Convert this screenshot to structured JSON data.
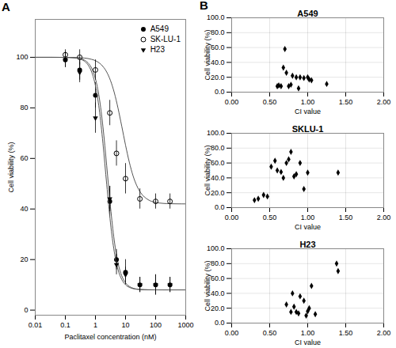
{
  "chart_data": [
    {
      "type": "scatter",
      "xlabel": "Paclitaxel concentration (nM)",
      "ylabel": "Cell viability (%)",
      "log": "x",
      "xlim": [
        0.01,
        1000
      ],
      "ylim": [
        -2,
        115
      ],
      "xticks": [
        0.01,
        0.1,
        1,
        10,
        100,
        1000
      ],
      "yticks": [
        0,
        20,
        40,
        60,
        80,
        100
      ],
      "grid": false,
      "legend": "upper right",
      "annotations": [
        "A"
      ],
      "series": [
        {
          "type": "line",
          "color": "#555555",
          "x": [
            0.01,
            0.01778,
            0.03162,
            0.05623,
            0.1,
            0.1778,
            0.3162,
            0.4217,
            0.5623,
            0.7499,
            1,
            1.334,
            1.778,
            2.371,
            3.162,
            4.217,
            5.623,
            7.499,
            10,
            13.34,
            17.78,
            23.71,
            31.62,
            56.23,
            100,
            177.8,
            316.2,
            562.3,
            1000
          ],
          "values": [
            100.0,
            100.0,
            100.0,
            99.99,
            99.97,
            99.88,
            99.48,
            98.94,
            97.84,
            95.68,
            91.55,
            84.17,
            72.48,
            57.04,
            40.86,
            27.59,
            18.71,
            13.55,
            10.79,
            9.38,
            8.68,
            8.33,
            8.16,
            8.04,
            8.01,
            8.0,
            8.0,
            8.0,
            8.0
          ]
        },
        {
          "type": "scatter",
          "name": "A549",
          "marker": "circle",
          "color": "black",
          "x": [
            0.1,
            0.3,
            1,
            3,
            5,
            10,
            30,
            100,
            300
          ],
          "values": [
            99,
            95,
            85,
            43,
            20,
            15,
            10,
            10,
            10
          ],
          "yerr": [
            3,
            4,
            5,
            6,
            4,
            5,
            3,
            4,
            3
          ]
        },
        {
          "type": "line",
          "color": "#555555",
          "x": [
            0.01,
            0.01778,
            0.03162,
            0.05623,
            0.1,
            0.1778,
            0.3162,
            0.4217,
            0.5623,
            0.7499,
            1,
            1.334,
            1.778,
            2.371,
            3.162,
            4.217,
            5.623,
            7.499,
            10,
            13.34,
            17.78,
            23.71,
            31.62,
            56.23,
            100,
            177.8,
            316.2,
            562.3,
            1000
          ],
          "values": [
            100.0,
            100.0,
            100.0,
            99.99,
            99.98,
            99.94,
            99.83,
            99.71,
            99.52,
            99.19,
            98.66,
            97.78,
            96.37,
            94.16,
            90.82,
            86.08,
            79.9,
            72.69,
            65.25,
            58.53,
            53.13,
            49.19,
            46.51,
            43.68,
            42.61,
            42.22,
            42.08,
            42.03,
            42.01
          ]
        },
        {
          "type": "scatter",
          "name": "SK-LU-1",
          "marker": "open_circle",
          "color": "black",
          "x": [
            0.1,
            0.3,
            1,
            3,
            5,
            10,
            30,
            100,
            300
          ],
          "values": [
            101,
            100,
            95,
            78,
            62,
            52,
            44,
            43,
            43
          ],
          "yerr": [
            2,
            3,
            4,
            5,
            5,
            6,
            4,
            3,
            3
          ]
        },
        {
          "type": "line",
          "color": "#555555",
          "x": [
            0.01,
            0.01778,
            0.03162,
            0.05623,
            0.1,
            0.1778,
            0.3162,
            0.4217,
            0.5623,
            0.7499,
            1,
            1.334,
            1.778,
            2.371,
            3.162,
            4.217,
            5.623,
            7.499,
            10,
            13.34,
            17.78,
            23.71,
            31.62,
            56.23,
            100,
            177.8,
            316.2,
            562.3,
            1000
          ],
          "values": [
            100.0,
            100.0,
            100.0,
            99.99,
            99.96,
            99.83,
            99.28,
            98.54,
            97.06,
            94.16,
            88.75,
            79.54,
            65.96,
            49.7,
            34.46,
            23.12,
            16.04,
            12.1,
            10.04,
            9.01,
            8.49,
            8.24,
            8.12,
            8.03,
            8.01,
            8.0,
            8.0,
            8.0,
            8.0
          ]
        },
        {
          "type": "scatter",
          "name": "H23",
          "marker": "triangle_down",
          "color": "black",
          "x": [
            0.1,
            0.3,
            1,
            3,
            5,
            10,
            30,
            100,
            300
          ],
          "values": [
            99,
            94,
            76,
            44,
            18,
            14,
            10,
            10,
            10
          ],
          "yerr": [
            3,
            4,
            6,
            5,
            4,
            3,
            3,
            4,
            3
          ]
        }
      ]
    },
    {
      "type": "scatter",
      "title": "A549",
      "xlabel": "CI value",
      "ylabel": "Cell viability (%)",
      "xlim": [
        0.0,
        2.0
      ],
      "ylim": [
        0.0,
        100.0
      ],
      "xticks": [
        {
          "value": 0.0,
          "label": "0.00"
        },
        {
          "value": 0.5,
          "label": "0.50"
        },
        {
          "value": 1.0,
          "label": "1.00"
        },
        {
          "value": 1.5,
          "label": "1.50"
        },
        {
          "value": 2.0,
          "label": "2.00"
        }
      ],
      "yticks": [
        {
          "value": 0.0,
          "label": "0.0"
        },
        {
          "value": 20.0,
          "label": "20.0"
        },
        {
          "value": 40.0,
          "label": "40.0"
        },
        {
          "value": 60.0,
          "label": "60.0"
        },
        {
          "value": 80.0,
          "label": "80.0"
        },
        {
          "value": 100.0,
          "label": "100.0"
        }
      ],
      "grid": true,
      "annotations": [
        "B"
      ],
      "series": [
        {
          "marker": "diamond",
          "color": "black",
          "x": [
            0.6,
            0.62,
            0.65,
            0.68,
            0.7,
            0.72,
            0.75,
            0.78,
            0.8,
            0.85,
            0.88,
            0.9,
            0.95,
            1.0,
            1.02,
            1.05,
            1.25
          ],
          "values": [
            8,
            9,
            8,
            33,
            58,
            26,
            8,
            10,
            22,
            20,
            5,
            20,
            19,
            20,
            17,
            16,
            11
          ]
        }
      ]
    },
    {
      "type": "scatter",
      "title": "SKLU-1",
      "xlabel": "CI value",
      "ylabel": "Cell viability (%)",
      "xlim": [
        0.0,
        2.0
      ],
      "ylim": [
        0.0,
        100.0
      ],
      "xticks": [
        {
          "value": 0.0,
          "label": "0.00"
        },
        {
          "value": 0.5,
          "label": "0.50"
        },
        {
          "value": 1.0,
          "label": "1.00"
        },
        {
          "value": 1.5,
          "label": "1.50"
        },
        {
          "value": 2.0,
          "label": "2.00"
        }
      ],
      "yticks": [
        {
          "value": 0.0,
          "label": "0.0"
        },
        {
          "value": 20.0,
          "label": "20.0"
        },
        {
          "value": 40.0,
          "label": "40.0"
        },
        {
          "value": 60.0,
          "label": "60.0"
        },
        {
          "value": 80.0,
          "label": "80.0"
        },
        {
          "value": 100.0,
          "label": "100.0"
        }
      ],
      "grid": true,
      "series": [
        {
          "marker": "diamond",
          "color": "black",
          "x": [
            0.3,
            0.35,
            0.42,
            0.47,
            0.52,
            0.57,
            0.6,
            0.65,
            0.68,
            0.72,
            0.75,
            0.78,
            0.82,
            0.85,
            0.9,
            0.95,
            1.0,
            1.4
          ],
          "values": [
            10,
            12,
            17,
            15,
            55,
            63,
            50,
            48,
            40,
            60,
            65,
            75,
            42,
            45,
            60,
            25,
            47,
            47
          ]
        }
      ]
    },
    {
      "type": "scatter",
      "title": "H23",
      "xlabel": "CI value",
      "ylabel": "Cell viability (%)",
      "xlim": [
        0.0,
        2.0
      ],
      "ylim": [
        0.0,
        100.0
      ],
      "xticks": [
        {
          "value": 0.0,
          "label": "0.00"
        },
        {
          "value": 0.5,
          "label": "0.50"
        },
        {
          "value": 1.0,
          "label": "1.00"
        },
        {
          "value": 1.5,
          "label": "1.50"
        },
        {
          "value": 2.0,
          "label": "2.00"
        }
      ],
      "yticks": [
        {
          "value": 0.0,
          "label": "0.0"
        },
        {
          "value": 20.0,
          "label": "20.0"
        },
        {
          "value": 40.0,
          "label": "40.0"
        },
        {
          "value": 60.0,
          "label": "60.0"
        },
        {
          "value": 80.0,
          "label": "80.0"
        },
        {
          "value": 100.0,
          "label": "100.0"
        }
      ],
      "grid": true,
      "series": [
        {
          "marker": "diamond",
          "color": "black",
          "x": [
            0.72,
            0.78,
            0.8,
            0.82,
            0.85,
            0.88,
            0.9,
            0.95,
            0.98,
            1.0,
            1.02,
            1.05,
            1.1,
            1.38,
            1.4
          ],
          "values": [
            25,
            15,
            40,
            22,
            15,
            13,
            36,
            30,
            10,
            16,
            20,
            50,
            12,
            80,
            70
          ]
        }
      ]
    }
  ]
}
